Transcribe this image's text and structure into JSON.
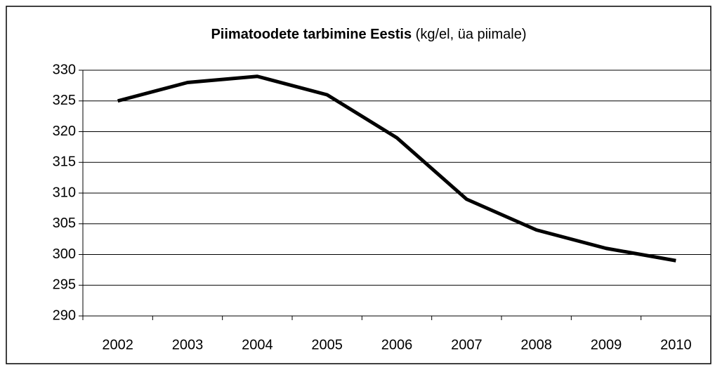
{
  "chart_data": {
    "type": "line",
    "title": "Piimatoodete tarbimine Eestis",
    "subtitle": "(kg/el, üa piimale)",
    "categories": [
      "2002",
      "2003",
      "2004",
      "2005",
      "2006",
      "2007",
      "2008",
      "2009",
      "2010"
    ],
    "values": [
      325,
      328,
      329,
      326,
      319,
      309,
      304,
      301,
      299
    ],
    "color": "#000000",
    "ylim": [
      290,
      330
    ],
    "yticks": [
      290,
      295,
      300,
      305,
      310,
      315,
      320,
      325,
      330
    ],
    "grid": true
  }
}
